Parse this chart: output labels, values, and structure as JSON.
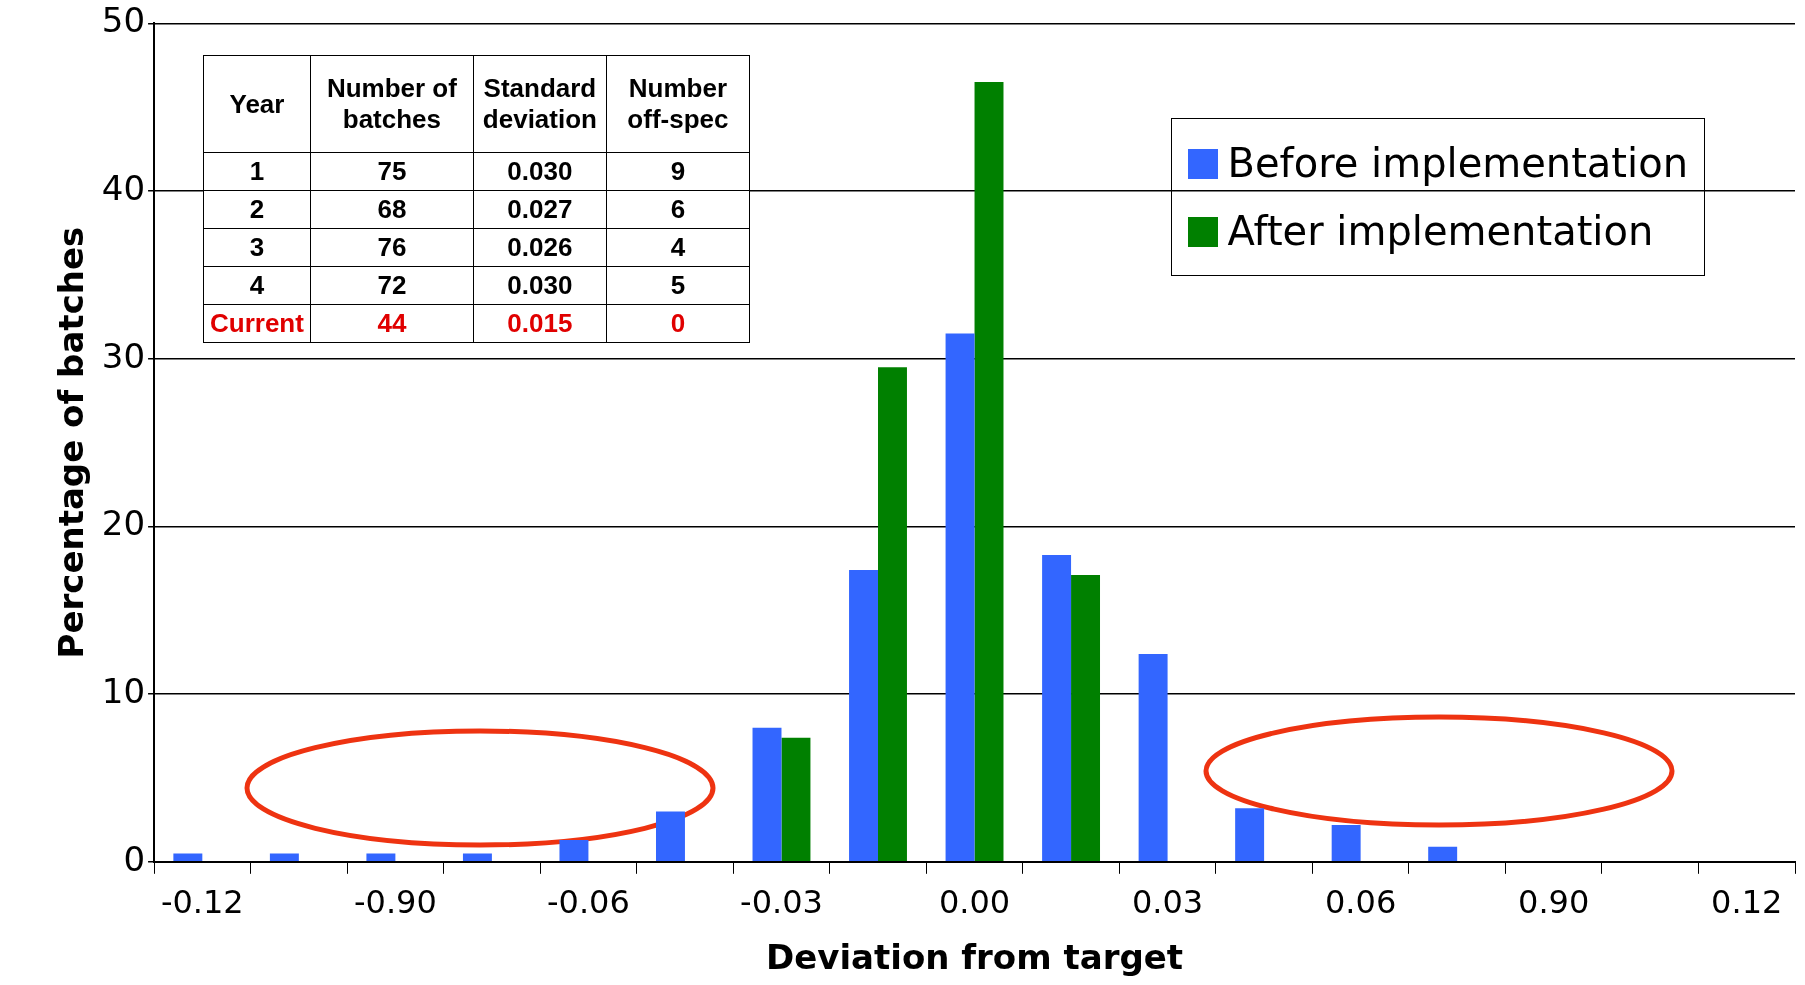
{
  "chart_data": {
    "type": "bar",
    "xlabel": "Deviation from target",
    "ylabel": "Percentage of batches",
    "categories": [
      "-0.12",
      null,
      "-0.90",
      null,
      "-0.06",
      null,
      "-0.03",
      null,
      "0.00",
      null,
      "0.03",
      null,
      "0.06",
      null,
      "0.90",
      null,
      "0.12"
    ],
    "series": [
      {
        "name": "Before implementation",
        "color": "#3366ff",
        "values": [
          0.5,
          0.5,
          0.5,
          0.5,
          1.3,
          3.0,
          8.0,
          17.4,
          31.5,
          18.3,
          12.4,
          3.2,
          2.2,
          0.9,
          0,
          0,
          0
        ]
      },
      {
        "name": "After implementation",
        "color": "#008000",
        "values": [
          0,
          0,
          0,
          0,
          0,
          0,
          7.4,
          29.5,
          46.5,
          17.1,
          0,
          0,
          0,
          0,
          0,
          0,
          0
        ]
      }
    ],
    "ylim": [
      0,
      50
    ],
    "yticks": [
      0,
      10,
      20,
      30,
      40,
      50
    ],
    "grid": "y",
    "legend": "top right",
    "annotations": [
      "Year",
      "Number of batches",
      "Standard deviation",
      "Number off-spec",
      "1",
      "75",
      "0.030",
      "9",
      "2",
      "68",
      "0.027",
      "6",
      "3",
      "76",
      "0.026",
      "4",
      "4",
      "72",
      "0.030",
      "5",
      "Current",
      "44",
      "0.015",
      "0"
    ]
  }
}
